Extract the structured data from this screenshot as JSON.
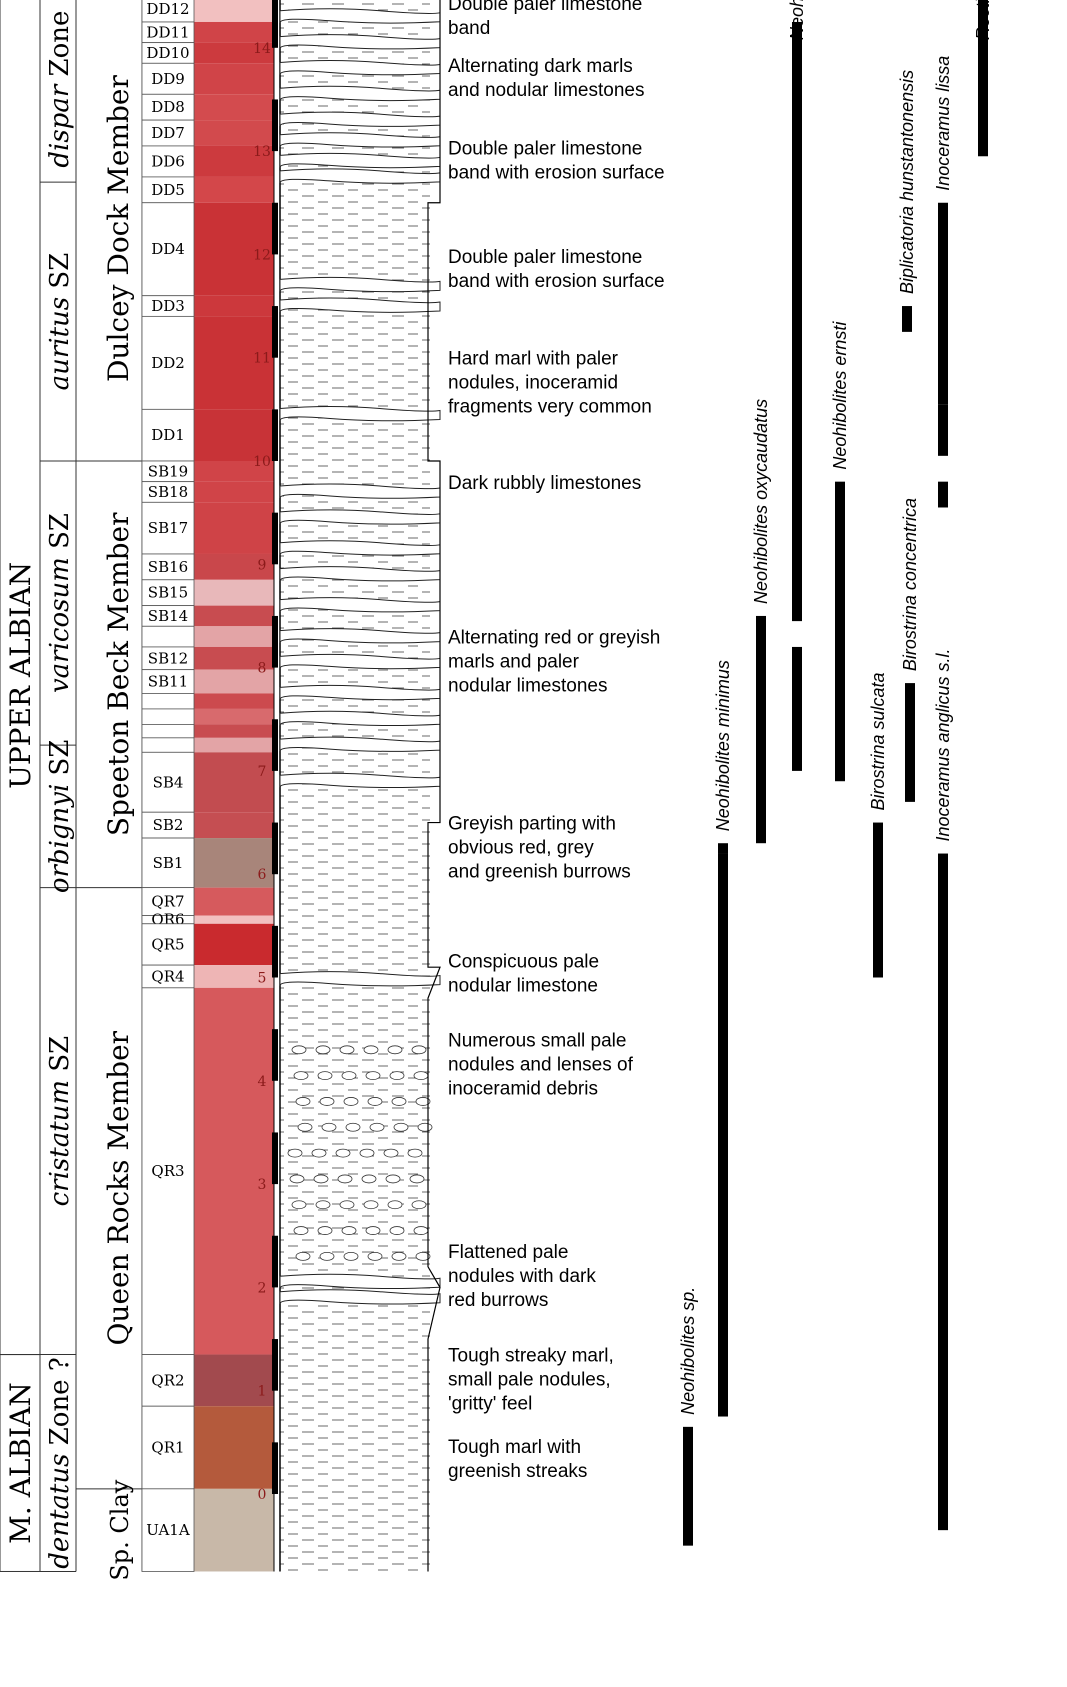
{
  "stages": [
    {
      "label": "UPPER ALBIAN",
      "top_m": 14.5,
      "bottom_m": 1.35
    },
    {
      "label": "M. ALBIAN",
      "top_m": 1.35,
      "bottom_m": -0.75
    }
  ],
  "zones": [
    {
      "label": "dispar Zone",
      "italic": "dispar",
      "rest": " Zone",
      "top_m": 14.5,
      "bottom_m": 12.7
    },
    {
      "label": "auritus SZ",
      "italic": "auritus",
      "rest": " SZ",
      "top_m": 12.7,
      "bottom_m": 10.0
    },
    {
      "label": "varicosum SZ",
      "italic": "varicosum",
      "rest": " SZ",
      "top_m": 10.0,
      "bottom_m": 7.25
    },
    {
      "label": "orbignyi SZ",
      "italic": "orbignyi",
      "rest": " SZ",
      "top_m": 7.25,
      "bottom_m": 5.87
    },
    {
      "label": "cristatum SZ",
      "italic": "cristatum",
      "rest": " SZ",
      "top_m": 5.87,
      "bottom_m": 1.35
    },
    {
      "label": "dentatus Zone ?",
      "italic": "dentatus",
      "rest": " Zone ?",
      "top_m": 1.35,
      "bottom_m": -0.75
    }
  ],
  "members": [
    {
      "label": "Dulcey Dock Member",
      "top_m": 14.5,
      "bottom_m": 10.0
    },
    {
      "label": "Speeton Beck Member",
      "top_m": 10.0,
      "bottom_m": 5.87
    },
    {
      "label": "Queen Rocks Member",
      "top_m": 5.87,
      "bottom_m": 0.05
    },
    {
      "label": "Sp. Clay",
      "top_m": 0.05,
      "bottom_m": -0.75
    }
  ],
  "beds": [
    {
      "label": "DD12",
      "top_m": 14.5,
      "bottom_m": 14.25,
      "color": "#f2c0c0"
    },
    {
      "label": "DD11",
      "top_m": 14.25,
      "bottom_m": 14.05,
      "color": "#d04448"
    },
    {
      "label": "DD10",
      "top_m": 14.05,
      "bottom_m": 13.85,
      "color": "#cc3a3e"
    },
    {
      "label": "DD9",
      "top_m": 13.85,
      "bottom_m": 13.55,
      "color": "#d04448"
    },
    {
      "label": "DD8",
      "top_m": 13.55,
      "bottom_m": 13.3,
      "color": "#d34b4e"
    },
    {
      "label": "DD7",
      "top_m": 13.3,
      "bottom_m": 13.05,
      "color": "#d24a4d"
    },
    {
      "label": "DD6",
      "top_m": 13.05,
      "bottom_m": 12.75,
      "color": "#cc3a3e"
    },
    {
      "label": "DD5",
      "top_m": 12.75,
      "bottom_m": 12.5,
      "color": "#d3474a"
    },
    {
      "label": "DD4",
      "top_m": 12.5,
      "bottom_m": 11.6,
      "color": "#c93236"
    },
    {
      "label": "DD3",
      "top_m": 11.6,
      "bottom_m": 11.4,
      "color": "#cc383c"
    },
    {
      "label": "DD2",
      "top_m": 11.4,
      "bottom_m": 10.5,
      "color": "#c93236"
    },
    {
      "label": "DD1",
      "top_m": 10.5,
      "bottom_m": 10.0,
      "color": "#c83337"
    },
    {
      "label": "SB19",
      "top_m": 10.0,
      "bottom_m": 9.8,
      "color": "#d04448"
    },
    {
      "label": "SB18",
      "top_m": 9.8,
      "bottom_m": 9.6,
      "color": "#d04448"
    },
    {
      "label": "SB17",
      "top_m": 9.6,
      "bottom_m": 9.1,
      "color": "#cf4347"
    },
    {
      "label": "SB16",
      "top_m": 9.1,
      "bottom_m": 8.85,
      "color": "#c9474b"
    },
    {
      "label": "SB15",
      "top_m": 8.85,
      "bottom_m": 8.6,
      "color": "#e8b8ba"
    },
    {
      "label": "SB14",
      "top_m": 8.6,
      "bottom_m": 8.4,
      "color": "#c84c50"
    },
    {
      "label": "",
      "top_m": 8.4,
      "bottom_m": 8.2,
      "color": "#e3a4a6"
    },
    {
      "label": "SB12",
      "top_m": 8.2,
      "bottom_m": 7.98,
      "color": "#c84c50"
    },
    {
      "label": "SB11",
      "top_m": 7.98,
      "bottom_m": 7.75,
      "color": "#e3a4a6"
    },
    {
      "label": "",
      "top_m": 7.75,
      "bottom_m": 7.6,
      "color": "#cc4a4e"
    },
    {
      "label": "",
      "top_m": 7.6,
      "bottom_m": 7.45,
      "color": "#d86a6d"
    },
    {
      "label": "",
      "top_m": 7.45,
      "bottom_m": 7.32,
      "color": "#c84c50"
    },
    {
      "label": "",
      "top_m": 7.32,
      "bottom_m": 7.18,
      "color": "#e3a4a6"
    },
    {
      "label": "SB4",
      "top_m": 7.18,
      "bottom_m": 6.6,
      "color": "#c24c50"
    },
    {
      "label": "SB2",
      "top_m": 6.6,
      "bottom_m": 6.35,
      "color": "#c54e52"
    },
    {
      "label": "SB1",
      "top_m": 6.35,
      "bottom_m": 5.87,
      "color": "#a8857a"
    },
    {
      "label": "QR7",
      "top_m": 5.87,
      "bottom_m": 5.6,
      "color": "#d65a5d"
    },
    {
      "label": "QR6",
      "top_m": 5.6,
      "bottom_m": 5.52,
      "color": "#f2c0c0"
    },
    {
      "label": "QR5",
      "top_m": 5.52,
      "bottom_m": 5.12,
      "color": "#c92a2e"
    },
    {
      "label": "QR4",
      "top_m": 5.12,
      "bottom_m": 4.9,
      "color": "#eeb5b5"
    },
    {
      "label": "QR3",
      "top_m": 4.9,
      "bottom_m": 1.35,
      "color": "#d6595c"
    },
    {
      "label": "QR2",
      "top_m": 1.35,
      "bottom_m": 0.85,
      "color": "#a24a4e"
    },
    {
      "label": "QR1",
      "top_m": 0.85,
      "bottom_m": 0.05,
      "color": "#b45a3c"
    },
    {
      "label": "UA1A",
      "top_m": 0.05,
      "bottom_m": -0.75,
      "color": "#c8b8a8"
    }
  ],
  "scale_ticks": [
    "0",
    "1",
    "2",
    "3",
    "4",
    "5",
    "6",
    "7",
    "8",
    "9",
    "10",
    "11",
    "12",
    "13",
    "14"
  ],
  "descriptions": [
    {
      "lines": [
        "Double paler limestone",
        " band"
      ],
      "depth_m": 14.25
    },
    {
      "lines": [
        "Alternating dark marls",
        " and nodular limestones"
      ],
      "depth_m": 13.65
    },
    {
      "lines": [
        "Double paler limestone",
        " band with erosion surface"
      ],
      "depth_m": 12.85
    },
    {
      "lines": [
        "Double paler limestone",
        " band with erosion surface"
      ],
      "depth_m": 11.8
    },
    {
      "lines": [
        "Hard marl with paler",
        " nodules, inoceramid",
        " fragments very common"
      ],
      "depth_m": 10.7
    },
    {
      "lines": [
        "Dark rubbly limestones"
      ],
      "depth_m": 9.73
    },
    {
      "lines": [
        "Alternating red or greyish",
        " marls and paler",
        " nodular limestones"
      ],
      "depth_m": 8.0
    },
    {
      "lines": [
        "Greyish parting with",
        " obvious red, grey",
        " and greenish burrows"
      ],
      "depth_m": 6.2
    },
    {
      "lines": [
        " Conspicuous pale",
        " nodular limestone"
      ],
      "depth_m": 4.98
    },
    {
      "lines": [
        "Numerous small pale",
        " nodules and lenses of",
        " inoceramid debris"
      ],
      "depth_m": 4.1
    },
    {
      "lines": [
        "Flattened pale",
        " nodules with dark",
        " red burrows"
      ],
      "depth_m": 2.05
    },
    {
      "lines": [
        "Tough streaky marl,",
        " small pale nodules,",
        " 'gritty' feel"
      ],
      "depth_m": 1.05
    },
    {
      "lines": [
        "Tough marl with",
        " greenish streaks"
      ],
      "depth_m": 0.28
    }
  ],
  "taxa": [
    {
      "name": "Neohibolites sp.",
      "ranges": [
        [
          -0.5,
          0.65
        ]
      ]
    },
    {
      "name": "Neohibolites minimus",
      "ranges": [
        [
          0.75,
          6.2
        ],
        [
          6.2,
          6.3
        ]
      ]
    },
    {
      "name": "Neohibolites oxycaudatus",
      "ranges": [
        [
          6.3,
          8.5
        ]
      ]
    },
    {
      "name": "Neohibolites praeultimus",
      "ranges": [
        [
          7.0,
          8.2
        ],
        [
          8.45,
          14.25
        ]
      ]
    },
    {
      "name": "Neohibolites ernsti",
      "ranges": [
        [
          6.9,
          9.8
        ]
      ]
    },
    {
      "name": "Birostrina sulcata",
      "ranges": [
        [
          5.0,
          6.5
        ]
      ]
    },
    {
      "name": "Birostrina concentrica",
      "ranges": [
        [
          6.7,
          7.85
        ]
      ]
    },
    {
      "name": "Biplicatoria hunstantonensis",
      "ranges": [
        [
          11.25,
          11.5
        ]
      ]
    },
    {
      "name": "Inoceramus anglicus s.l.",
      "ranges": [
        [
          -0.35,
          6.2
        ]
      ]
    },
    {
      "name": "Inoceramus lissa",
      "ranges": [
        [
          9.55,
          9.8
        ],
        [
          10.05,
          10.55
        ],
        [
          10.55,
          12.5
        ]
      ]
    },
    {
      "name": "Rectithyris depressa",
      "ranges": [
        [
          12.95,
          14.5
        ]
      ]
    }
  ],
  "colors": {
    "ink": "#000000",
    "column_line": "#333333",
    "scale_text": "#8b1a1a"
  }
}
